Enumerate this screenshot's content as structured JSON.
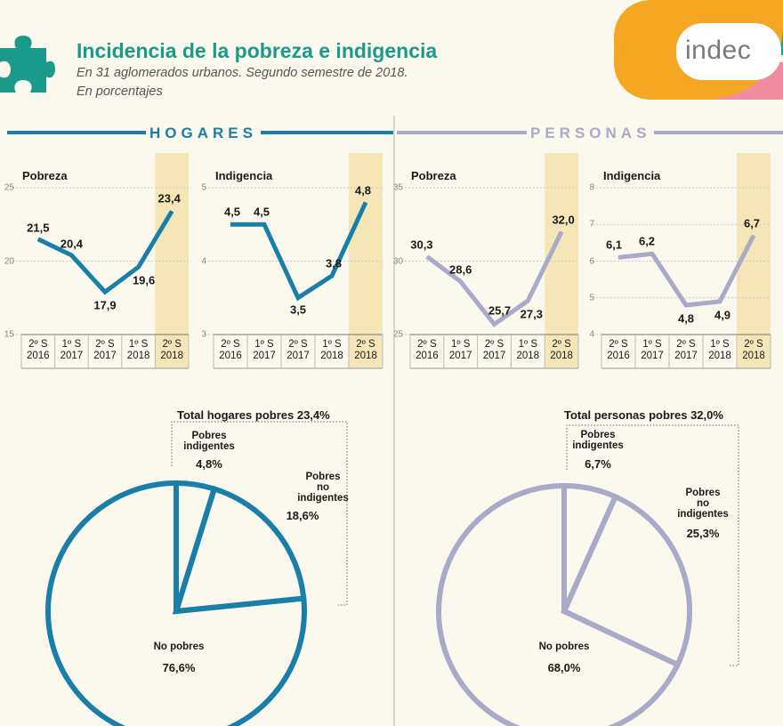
{
  "header": {
    "title": "Incidencia de la pobreza e indigencia",
    "subtitle_line1": "En 31 aglomerados urbanos. Segundo semestre de 2018.",
    "subtitle_line2": "En porcentajes",
    "logo_text": "indec",
    "icon": "puzzle-icon"
  },
  "sections": {
    "hogares": "HOGARES",
    "personas": "PERSONAS"
  },
  "colors": {
    "hogares": "#1a7fa8",
    "personas": "#a9a9c9",
    "highlight": "#f5e6b8",
    "title": "#1a9a8a",
    "logo_orange": "#f5a623",
    "logo_teal": "#2a9a8a",
    "logo_pink": "#f08ca0"
  },
  "chart_data": [
    {
      "type": "line",
      "group": "hogares",
      "title": "Pobreza",
      "x": [
        "2º S\n2016",
        "1º S\n2017",
        "2º S\n2017",
        "1º S\n2018",
        "2º S\n2018"
      ],
      "values": [
        21.5,
        20.4,
        17.9,
        19.6,
        23.4
      ],
      "value_labels": [
        "21,5",
        "20,4",
        "17,9",
        "19,6",
        "23,4"
      ],
      "yticks": [
        "25",
        "20",
        "15"
      ],
      "ylim": [
        15,
        25
      ],
      "highlight_index": 4
    },
    {
      "type": "line",
      "group": "hogares",
      "title": "Indigencia",
      "x": [
        "2º S\n2016",
        "1º S\n2017",
        "2º S\n2017",
        "1º S\n2018",
        "2º S\n2018"
      ],
      "values": [
        4.5,
        4.5,
        3.5,
        3.8,
        4.8
      ],
      "value_labels": [
        "4,5",
        "4,5",
        "3,5",
        "3,8",
        "4,8"
      ],
      "yticks": [
        "5",
        "4",
        "3"
      ],
      "ylim": [
        3,
        5
      ],
      "highlight_index": 4
    },
    {
      "type": "line",
      "group": "personas",
      "title": "Pobreza",
      "x": [
        "2º S\n2016",
        "1º S\n2017",
        "2º S\n2017",
        "1º S\n2018",
        "2º S\n2018"
      ],
      "values": [
        30.3,
        28.6,
        25.7,
        27.3,
        32.0
      ],
      "value_labels": [
        "30,3",
        "28,6",
        "25,7",
        "27,3",
        "32,0"
      ],
      "yticks": [
        "35",
        "30",
        "25"
      ],
      "ylim": [
        25,
        35
      ],
      "highlight_index": 4
    },
    {
      "type": "line",
      "group": "personas",
      "title": "Indigencia",
      "x": [
        "2º S\n2016",
        "1º S\n2017",
        "2º S\n2017",
        "1º S\n2018",
        "2º S\n2018"
      ],
      "values": [
        6.1,
        6.2,
        4.8,
        4.9,
        6.7
      ],
      "value_labels": [
        "6,1",
        "6,2",
        "4,8",
        "4,9",
        "6,7"
      ],
      "yticks": [
        "8",
        "7",
        "6",
        "5",
        "4"
      ],
      "ylim": [
        4,
        8
      ],
      "highlight_index": 4
    },
    {
      "type": "pie",
      "group": "hogares",
      "total_label": "Total hogares pobres 23,4%",
      "slices": [
        {
          "label": "Pobres\nindigentes",
          "value": 4.8,
          "value_label": "4,8%"
        },
        {
          "label": "Pobres\nno\nindigentes",
          "value": 18.6,
          "value_label": "18,6%"
        },
        {
          "label": "No pobres",
          "value": 76.6,
          "value_label": "76,6%"
        }
      ]
    },
    {
      "type": "pie",
      "group": "personas",
      "total_label": "Total personas pobres 32,0%",
      "slices": [
        {
          "label": "Pobres\nindigentes",
          "value": 6.7,
          "value_label": "6,7%"
        },
        {
          "label": "Pobres\nno\nindigentes",
          "value": 25.3,
          "value_label": "25,3%"
        },
        {
          "label": "No pobres",
          "value": 68.0,
          "value_label": "68,0%"
        }
      ]
    }
  ]
}
